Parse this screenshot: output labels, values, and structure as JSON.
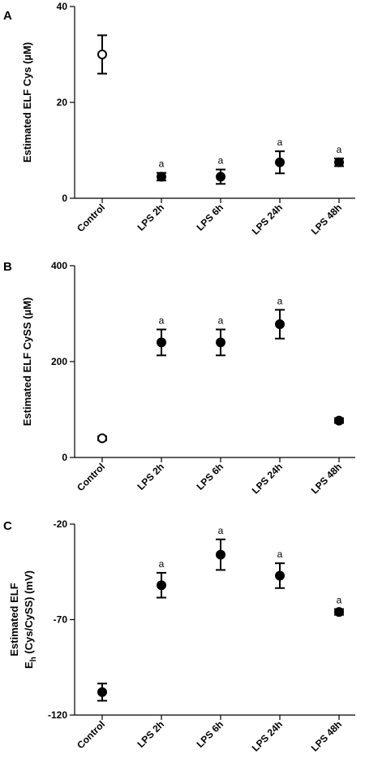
{
  "chart_data": [
    {
      "type": "scatter",
      "panel_label": "A",
      "ylabel": "Estimated ELF Cys (µM)",
      "ylim": [
        0,
        40
      ],
      "yticks": [
        0,
        20,
        40
      ],
      "categories": [
        "Control",
        "LPS 2h",
        "LPS 6h",
        "LPS 24h",
        "LPS 48h"
      ],
      "values": [
        30,
        4.5,
        4.5,
        7.5,
        7.5
      ],
      "errors": [
        4,
        0.8,
        1.5,
        2.3,
        0.8
      ],
      "open_marker": [
        true,
        false,
        false,
        false,
        false
      ],
      "annotations": [
        "",
        "a",
        "a",
        "a",
        "a"
      ]
    },
    {
      "type": "scatter",
      "panel_label": "B",
      "ylabel": "Estimated ELF CySS (µM)",
      "ylim": [
        0,
        400
      ],
      "yticks": [
        0,
        200,
        400
      ],
      "categories": [
        "Control",
        "LPS 2h",
        "LPS 6h",
        "LPS 24h",
        "LPS 48h"
      ],
      "values": [
        40,
        240,
        240,
        278,
        77
      ],
      "errors": [
        4,
        27,
        27,
        30,
        5
      ],
      "open_marker": [
        true,
        false,
        false,
        false,
        false
      ],
      "annotations": [
        "",
        "a",
        "a",
        "a",
        ""
      ]
    },
    {
      "type": "scatter",
      "panel_label": "C",
      "ylabel_line1": "Estimated ELF",
      "ylabel_line2_main": "E",
      "ylabel_line2_sub": "h",
      "ylabel_line2_rest": " (Cys/CySS) (mV)",
      "ylim": [
        -120,
        -20
      ],
      "yticks": [
        -120,
        -70,
        -20
      ],
      "categories": [
        "Control",
        "LPS 2h",
        "LPS 6h",
        "LPS 24h",
        "LPS 48h"
      ],
      "values": [
        -108,
        -52,
        -36,
        -47,
        -66
      ],
      "errors": [
        4.5,
        6.5,
        8,
        6.5,
        1.5
      ],
      "open_marker": [
        false,
        false,
        false,
        false,
        false
      ],
      "annotations": [
        "",
        "a",
        "a",
        "a",
        "a"
      ]
    }
  ]
}
